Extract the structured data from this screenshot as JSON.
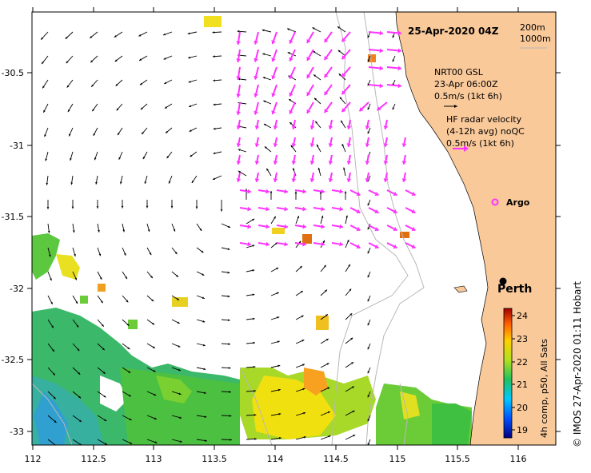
{
  "map": {
    "date_label": "25-Apr-2020 04Z",
    "isobaths": [
      "200m",
      "1000m"
    ],
    "gsl_legend": {
      "title": "NRT00 GSL",
      "time": "23-Apr 06:00Z",
      "scale": "0.5m/s (1kt 6h)"
    },
    "radar_legend": {
      "title": "HF radar velocity",
      "avg": "(4-12h avg) noQC",
      "scale": "0.5m/s (1kt 6h)"
    },
    "places": {
      "argo": "Argo",
      "perth": "Perth"
    },
    "colorbar": {
      "ticks": [
        "24",
        "23",
        "22",
        "21",
        "20",
        "19"
      ],
      "caption": "4h comp, p50, All Sats"
    },
    "credit": "© IMOS 27-Apr-2020 01:11 Hobart",
    "x_ticks": [
      "112",
      "112.5",
      "113",
      "113.5",
      "114",
      "114.5",
      "115",
      "115.5",
      "116"
    ],
    "y_ticks": [
      "-30.5",
      "-31",
      "-31.5",
      "-32",
      "-32.5",
      "-33"
    ],
    "colors": {
      "land": "#f9c99a",
      "radar_arrow": "#ff33ff",
      "gsl_arrow": "#000000",
      "isobath": "#b8b8b8"
    }
  }
}
